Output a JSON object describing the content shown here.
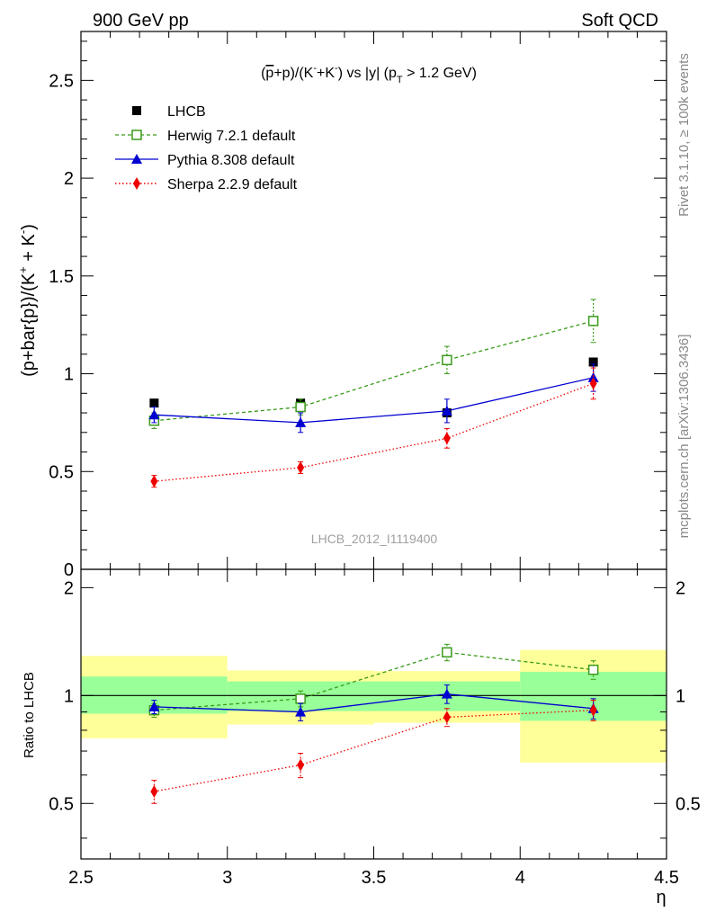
{
  "header": {
    "left_label": "900 GeV pp",
    "right_label": "Soft QCD"
  },
  "side": {
    "rivet_label": "Rivet 3.1.10, ≥ 100k events",
    "mcplots_label": "mcplots.cern.ch [arXiv:1306.3436]"
  },
  "watermark": "LHCB_2012_I1119400",
  "colors": {
    "lhcb": "#000000",
    "herwig": "#3a9a1a",
    "pythia": "#0000d0",
    "sherpa": "#ee0000",
    "band_inner": "#99ff99",
    "band_outer": "#ffff99"
  },
  "chart_data": [
    {
      "type": "scatter",
      "title": "(p̅+p)/(K⁻+K⁻) vs |y| (p_T > 1.2 GeV)",
      "title_parts": {
        "a": "(",
        "pbar": "p",
        "b": "+p)/(K",
        "sup1": "-",
        "c": "+K",
        "sup2": "-",
        "d": ") vs |y| (p",
        "sub": "T",
        "e": " > 1.2 GeV)"
      },
      "ylabel": "(p+bar{p})/(K⁺ + K⁻)",
      "ylabel_parts": {
        "a": "(p+bar{p})/(K",
        "sup1": "+",
        "b": " + K",
        "sup2": "-",
        "c": ")"
      },
      "xlim": [
        2.5,
        4.5
      ],
      "ylim": [
        0,
        2.75
      ],
      "yticks": [
        "0",
        "0.5",
        "1",
        "1.5",
        "2",
        "2.5"
      ],
      "yticks_values": [
        0,
        0.5,
        1,
        1.5,
        2,
        2.5
      ],
      "legend": "top-left",
      "series": [
        {
          "name": "LHCB",
          "x": [
            2.75,
            3.25,
            3.75,
            4.25
          ],
          "y": [
            0.85,
            0.85,
            0.8,
            1.06
          ],
          "yerr": [
            0.0,
            0.0,
            0.0,
            0.0
          ]
        },
        {
          "name": "Herwig 7.2.1 default",
          "x": [
            2.75,
            3.25,
            3.75,
            4.25
          ],
          "y": [
            0.76,
            0.83,
            1.07,
            1.27
          ],
          "yerr": [
            0.04,
            0.04,
            0.07,
            0.11
          ]
        },
        {
          "name": "Pythia 8.308 default",
          "x": [
            2.75,
            3.25,
            3.75,
            4.25
          ],
          "y": [
            0.79,
            0.75,
            0.81,
            0.98
          ],
          "yerr": [
            0.04,
            0.05,
            0.06,
            0.07
          ]
        },
        {
          "name": "Sherpa 2.2.9 default",
          "x": [
            2.75,
            3.25,
            3.75,
            4.25
          ],
          "y": [
            0.45,
            0.52,
            0.67,
            0.95
          ],
          "yerr": [
            0.03,
            0.03,
            0.05,
            0.08
          ]
        }
      ]
    },
    {
      "type": "scatter",
      "ylabel": "Ratio to LHCB",
      "xlabel": "η",
      "xlim": [
        2.5,
        4.5
      ],
      "ylim": [
        0.35,
        2.25
      ],
      "xticks": [
        "2.5",
        "3",
        "3.5",
        "4",
        "4.5"
      ],
      "xticks_values": [
        2.5,
        3.0,
        3.5,
        4.0,
        4.5
      ],
      "yticks": [
        "0.5",
        "1",
        "2"
      ],
      "yticks_values": [
        0.5,
        1,
        2
      ],
      "bands": [
        {
          "x": [
            2.5,
            3.0
          ],
          "inner": [
            0.89,
            1.13
          ],
          "outer": [
            0.76,
            1.29
          ]
        },
        {
          "x": [
            3.0,
            3.5
          ],
          "inner": [
            0.905,
            1.095
          ],
          "outer": [
            0.83,
            1.175
          ]
        },
        {
          "x": [
            3.5,
            4.0
          ],
          "inner": [
            0.905,
            1.095
          ],
          "outer": [
            0.84,
            1.17
          ]
        },
        {
          "x": [
            4.0,
            4.5
          ],
          "inner": [
            0.85,
            1.165
          ],
          "outer": [
            0.65,
            1.34
          ]
        }
      ],
      "series": [
        {
          "name": "Herwig 7.2.1 default",
          "x": [
            2.75,
            3.25,
            3.75,
            4.25
          ],
          "y": [
            0.91,
            0.98,
            1.32,
            1.18
          ],
          "yerr": [
            0.04,
            0.05,
            0.07,
            0.07
          ]
        },
        {
          "name": "Pythia 8.308 default",
          "x": [
            2.75,
            3.25,
            3.75,
            4.25
          ],
          "y": [
            0.93,
            0.9,
            1.01,
            0.92
          ],
          "yerr": [
            0.04,
            0.05,
            0.06,
            0.06
          ]
        },
        {
          "name": "Sherpa 2.2.9 default",
          "x": [
            2.75,
            3.25,
            3.75,
            4.25
          ],
          "y": [
            0.54,
            0.64,
            0.87,
            0.91
          ],
          "yerr": [
            0.04,
            0.05,
            0.05,
            0.06
          ]
        }
      ]
    }
  ]
}
